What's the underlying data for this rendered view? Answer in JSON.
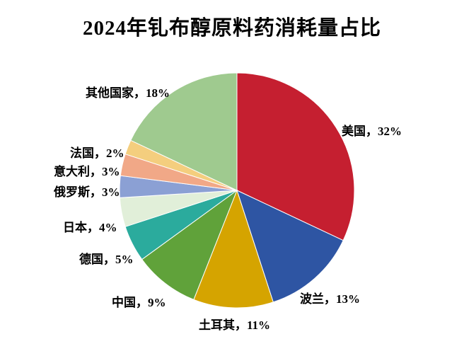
{
  "chart_data": {
    "type": "pie",
    "title": "2024年钆布醇原料药消耗量占比",
    "unit": "%",
    "direction": "clockwise",
    "start_angle_deg": 0,
    "legend": "none",
    "labels_position": "outside",
    "slices": [
      {
        "key": "us",
        "label": "美国",
        "value": 32,
        "display": "美国，32%",
        "color": "#C51F30"
      },
      {
        "key": "poland",
        "label": "波兰",
        "value": 13,
        "display": "波兰，13%",
        "color": "#2E55A3"
      },
      {
        "key": "turkey",
        "label": "土耳其",
        "value": 11,
        "display": "土耳其，11%",
        "color": "#D5A400"
      },
      {
        "key": "china",
        "label": "中国",
        "value": 9,
        "display": "中国，9%",
        "color": "#60A23A"
      },
      {
        "key": "germany",
        "label": "德国",
        "value": 5,
        "display": "德国，5%",
        "color": "#2BAB9D"
      },
      {
        "key": "japan",
        "label": "日本",
        "value": 4,
        "display": "日本，4%",
        "color": "#E1EFD9"
      },
      {
        "key": "russia",
        "label": "俄罗斯",
        "value": 3,
        "display": "俄罗斯，3%",
        "color": "#8BA0D4"
      },
      {
        "key": "italy",
        "label": "意大利",
        "value": 3,
        "display": "意大利，3%",
        "color": "#F1A887"
      },
      {
        "key": "france",
        "label": "法国",
        "value": 2,
        "display": "法国，2%",
        "color": "#F4CE7E"
      },
      {
        "key": "other",
        "label": "其他国家",
        "value": 18,
        "display": "其他国家，18%",
        "color": "#9FCA8F"
      }
    ]
  },
  "colors": {
    "background": "#FFFFFF",
    "text": "#000000",
    "slice_border": "#FFFFFF"
  }
}
